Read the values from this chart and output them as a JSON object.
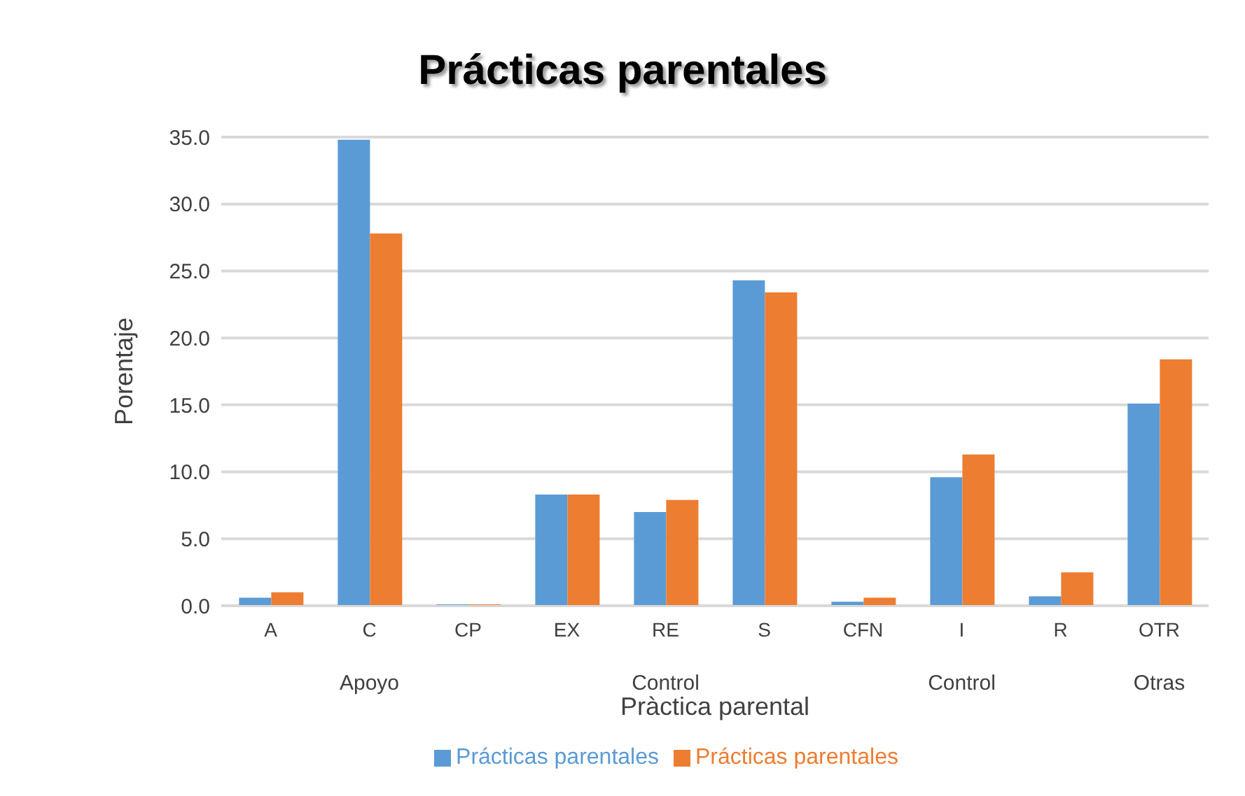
{
  "chart_data": {
    "type": "bar",
    "title": "Prácticas parentales",
    "xlabel": "Pràctica parental",
    "ylabel": "Porentaje",
    "categories": [
      "A",
      "C",
      "CP",
      "EX",
      "RE",
      "S",
      "CFN",
      "I",
      "R",
      "OTR"
    ],
    "series": [
      {
        "name": "Prácticas parentales",
        "color": "#5b9bd5",
        "values": [
          0.6,
          34.8,
          0.1,
          8.3,
          7.0,
          24.3,
          0.3,
          9.6,
          0.7,
          15.1
        ]
      },
      {
        "name": "Prácticas parentales",
        "color": "#ed7d31",
        "values": [
          1.0,
          27.8,
          0.1,
          8.3,
          7.9,
          23.4,
          0.6,
          11.3,
          2.5,
          18.4
        ]
      }
    ],
    "ylim": [
      0,
      35
    ],
    "yticks": [
      {
        "value": 0,
        "label": "0.0"
      },
      {
        "value": 5,
        "label": "5.0"
      },
      {
        "value": 10,
        "label": "10.0"
      },
      {
        "value": 15,
        "label": "15.0"
      },
      {
        "value": 20,
        "label": "20.0"
      },
      {
        "value": 25,
        "label": "25.0"
      },
      {
        "value": 30,
        "label": "30.0"
      },
      {
        "value": 35,
        "label": "35.0"
      }
    ],
    "grid": "y",
    "legend": "bottom",
    "annotations": [
      "Apoyo",
      "Control",
      "Control",
      "Otras"
    ]
  }
}
